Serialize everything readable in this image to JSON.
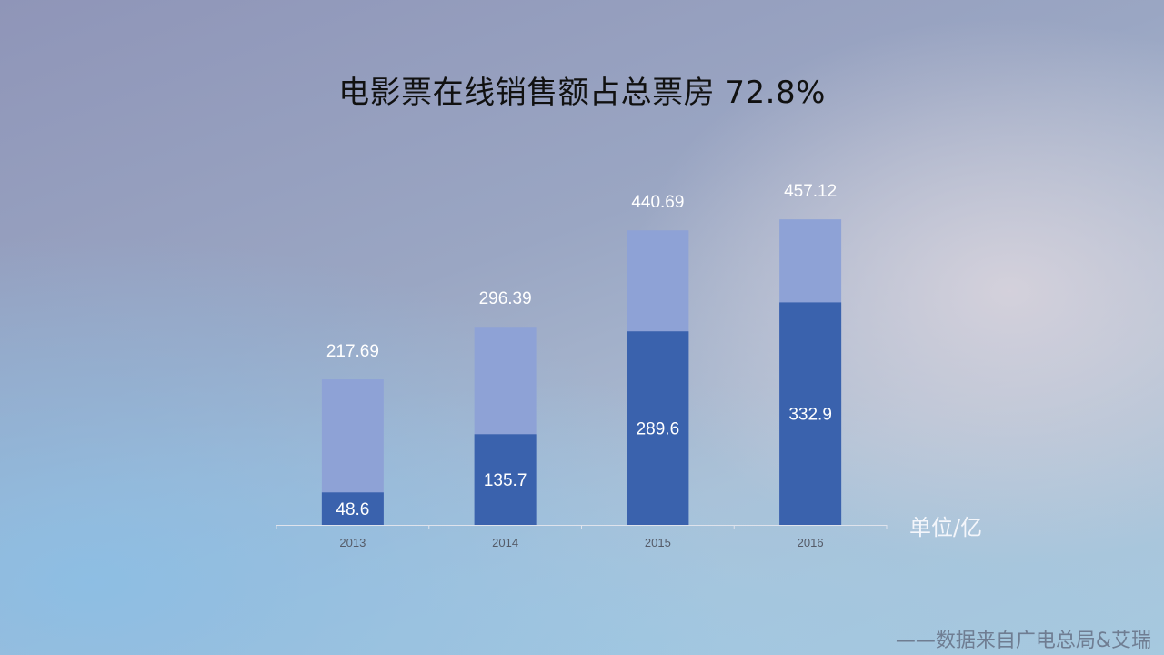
{
  "chart_data": {
    "type": "bar",
    "title": "电影票在线销售额占总票房 72.8%",
    "categories": [
      "2013",
      "2014",
      "2015",
      "2016"
    ],
    "series": [
      {
        "values": [
          48.6,
          135.7,
          289.6,
          332.9
        ],
        "color": "#3a62ad"
      },
      {
        "values": [
          217.69,
          296.39,
          440.69,
          457.12
        ],
        "color": "#8ea2d6"
      }
    ],
    "stacked_overlay": true,
    "ylim": [
      0,
      500
    ],
    "grid": false,
    "unit_label": "单位/亿",
    "source": "——数据来自广电总局&艾瑞"
  }
}
